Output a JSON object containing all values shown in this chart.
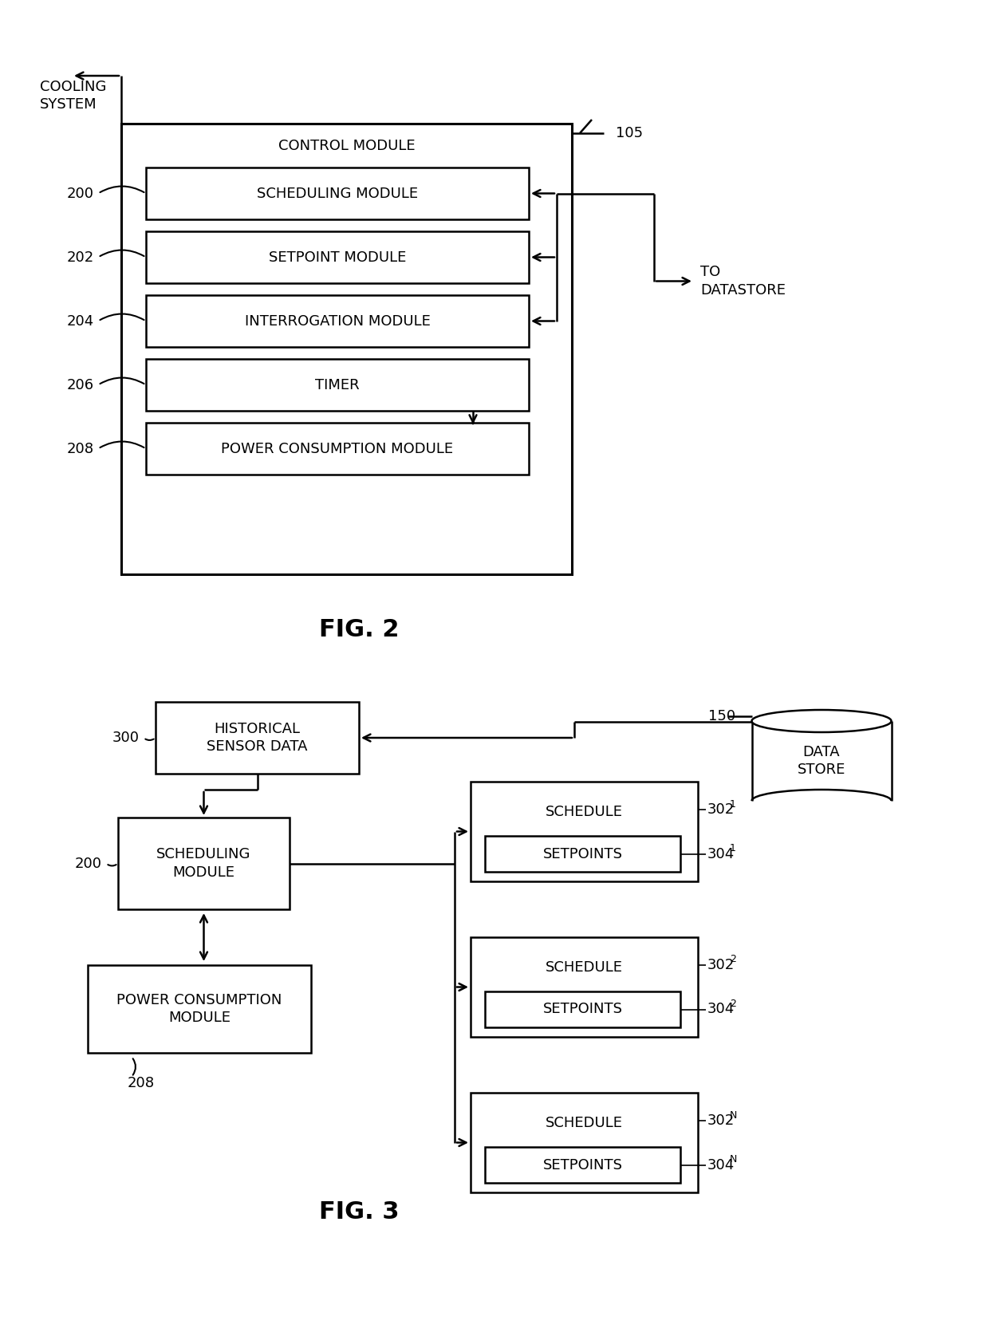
{
  "fig2": {
    "title": "FIG. 2",
    "modules": [
      {
        "label": "200",
        "text": "SCHEDULING MODULE"
      },
      {
        "label": "202",
        "text": "SETPOINT MODULE"
      },
      {
        "label": "204",
        "text": "INTERROGATION MODULE"
      },
      {
        "label": "206",
        "text": "TIMER"
      },
      {
        "label": "208",
        "text": "POWER CONSUMPTION MODULE"
      }
    ]
  },
  "fig3": {
    "title": "FIG. 3",
    "schedules": [
      {
        "sched_label": "302",
        "sched_sub": "1",
        "setpoint_label": "304",
        "setpoint_sub": "1"
      },
      {
        "sched_label": "302",
        "sched_sub": "2",
        "setpoint_label": "304",
        "setpoint_sub": "2"
      },
      {
        "sched_label": "302",
        "sched_sub": "N",
        "setpoint_label": "304",
        "setpoint_sub": "N"
      }
    ]
  },
  "bg_color": "#ffffff",
  "line_color": "#000000",
  "text_color": "#000000",
  "font_size": 13,
  "title_font_size": 22
}
